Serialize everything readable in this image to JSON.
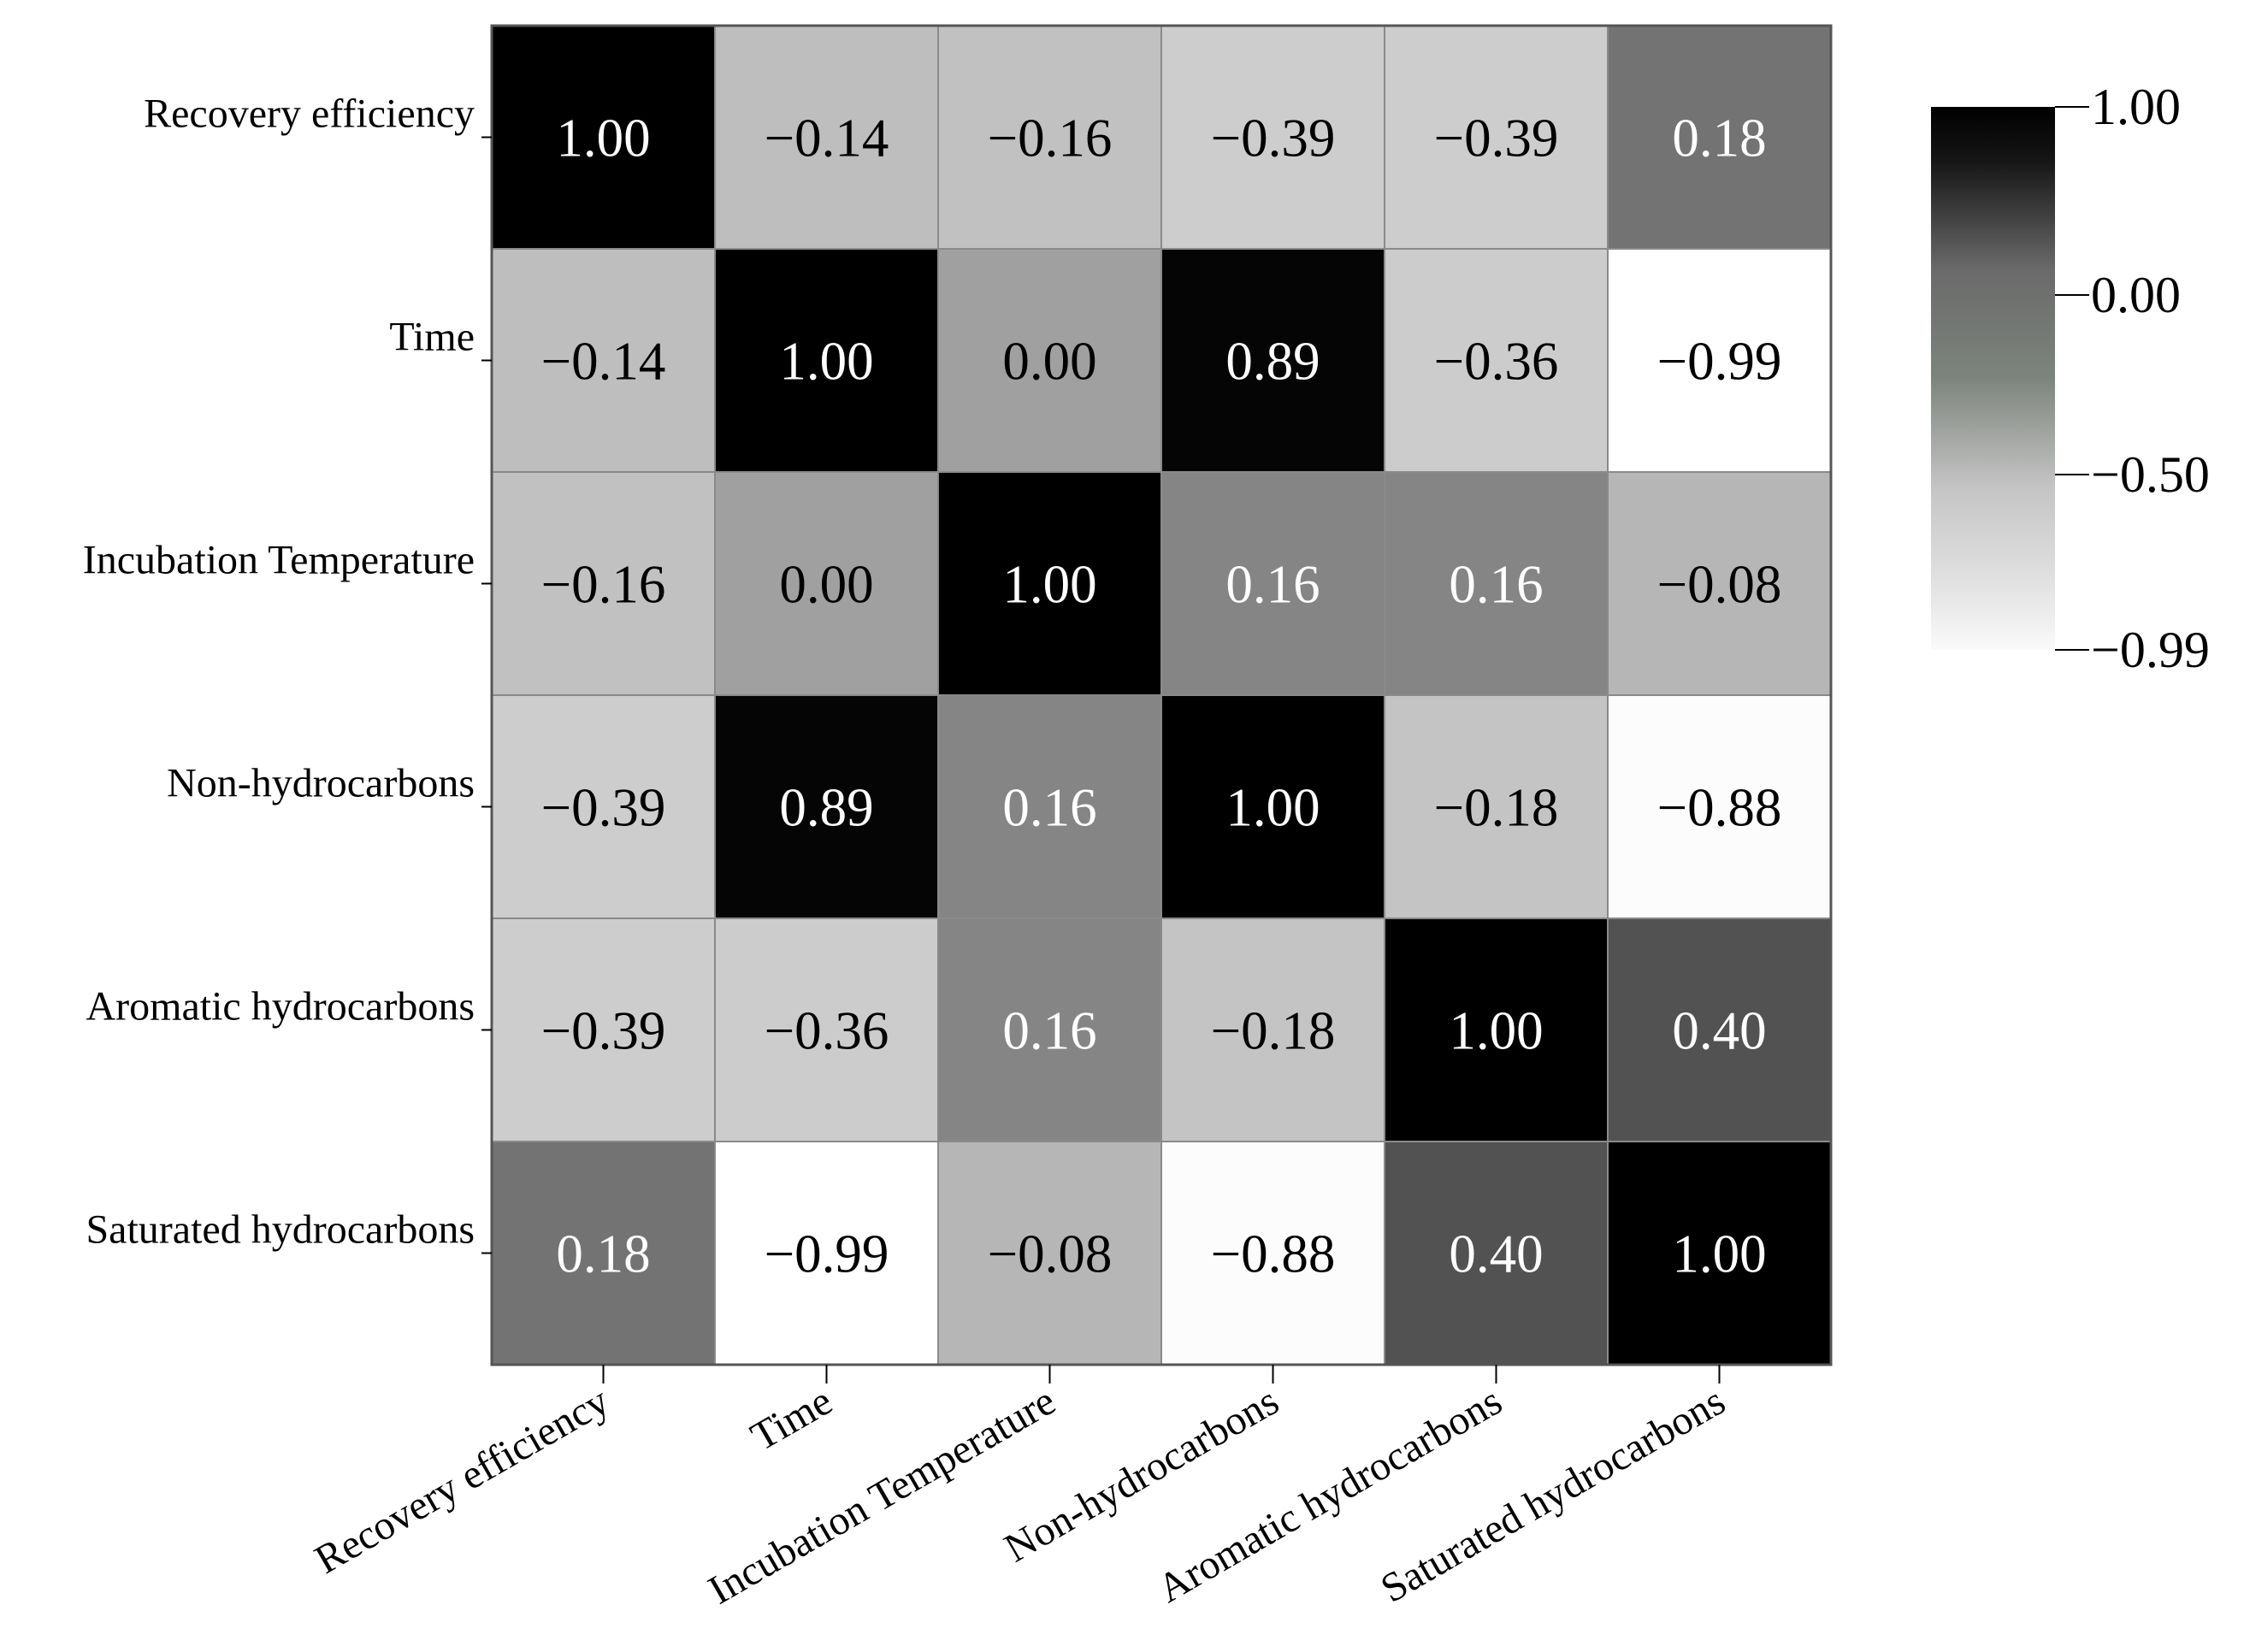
{
  "chart_data": {
    "type": "heatmap",
    "title": "",
    "rows": [
      "Recovery efficiency",
      "Time",
      "Incubation Temperature",
      "Non-hydrocarbons",
      "Aromatic hydrocarbons",
      "Saturated hydrocarbons"
    ],
    "columns": [
      "Recovery efficiency",
      "Time",
      "Incubation Temperature",
      "Non-hydrocarbons",
      "Aromatic hydrocarbons",
      "Saturated hydrocarbons"
    ],
    "values": [
      [
        1.0,
        -0.14,
        -0.16,
        -0.39,
        -0.39,
        0.18
      ],
      [
        -0.14,
        1.0,
        0.0,
        0.89,
        -0.36,
        -0.99
      ],
      [
        -0.16,
        0.0,
        1.0,
        0.16,
        0.16,
        -0.08
      ],
      [
        -0.39,
        0.89,
        0.16,
        1.0,
        -0.18,
        -0.88
      ],
      [
        -0.39,
        -0.36,
        0.16,
        -0.18,
        1.0,
        0.4
      ],
      [
        0.18,
        -0.99,
        -0.08,
        -0.88,
        0.4,
        1.0
      ]
    ],
    "value_labels": [
      [
        "1.00",
        "−0.14",
        "−0.16",
        "−0.39",
        "−0.39",
        "0.18"
      ],
      [
        "−0.14",
        "1.00",
        "0.00",
        "0.89",
        "−0.36",
        "−0.99"
      ],
      [
        "−0.16",
        "0.00",
        "1.00",
        "0.16",
        "0.16",
        "−0.08"
      ],
      [
        "−0.39",
        "0.89",
        "0.16",
        "1.00",
        "−0.18",
        "−0.88"
      ],
      [
        "−0.39",
        "−0.36",
        "0.16",
        "−0.18",
        "1.00",
        "0.40"
      ],
      [
        "0.18",
        "−0.99",
        "−0.08",
        "−0.88",
        "0.40",
        "1.00"
      ]
    ],
    "colorbar": {
      "min": -0.99,
      "max": 1.0,
      "ticks": [
        1.0,
        0.0,
        -0.5,
        -0.99
      ],
      "tick_labels": [
        "1.00",
        "0.00",
        "−0.50",
        "−0.99"
      ],
      "colormap": "grayscale (dark = high, white = low)"
    },
    "xlabel": "",
    "ylabel": ""
  }
}
